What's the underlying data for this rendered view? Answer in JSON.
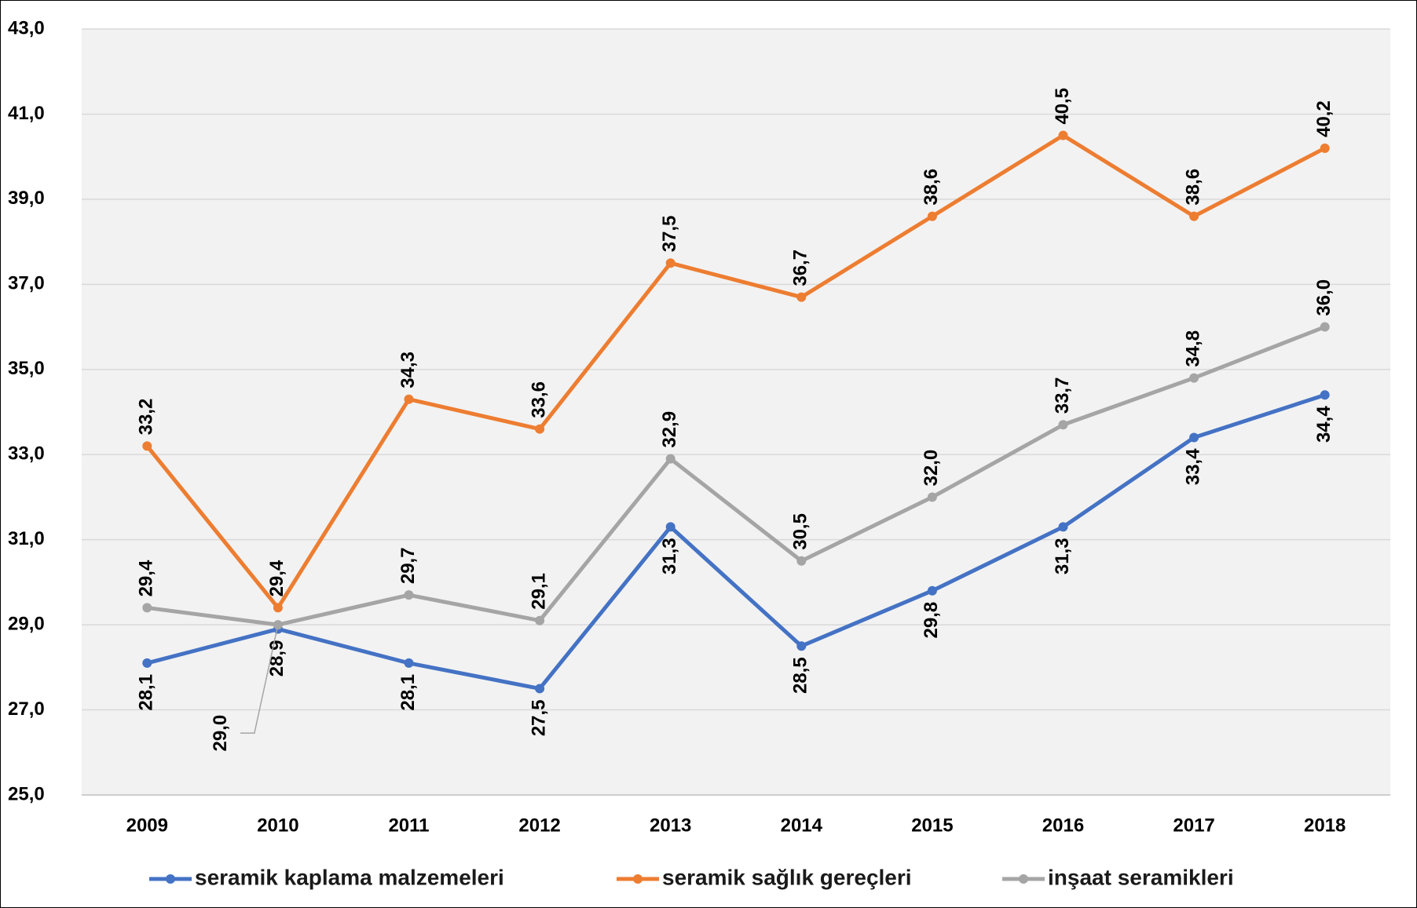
{
  "chart_data": {
    "type": "line",
    "categories": [
      "2009",
      "2010",
      "2011",
      "2012",
      "2013",
      "2014",
      "2015",
      "2016",
      "2017",
      "2018"
    ],
    "series": [
      {
        "name": "seramik kaplama malzemeleri",
        "color": "#4472c4",
        "values": [
          28.1,
          28.9,
          28.1,
          27.5,
          31.3,
          28.5,
          29.8,
          31.3,
          33.4,
          34.4
        ],
        "value_labels": [
          "28,1",
          "28,9",
          "28,1",
          "27,5",
          "31,3",
          "28,5",
          "29,8",
          "31,3",
          "33,4",
          "34,4"
        ]
      },
      {
        "name": "seramik sağlık gereçleri",
        "color": "#ed7d31",
        "values": [
          33.2,
          29.4,
          34.3,
          33.6,
          37.5,
          36.7,
          38.6,
          40.5,
          38.6,
          40.2
        ],
        "value_labels": [
          "33,2",
          "29,4",
          "34,3",
          "33,6",
          "37,5",
          "36,7",
          "38,6",
          "40,5",
          "38,6",
          "40,2"
        ]
      },
      {
        "name": "inşaat seramikleri",
        "color": "#a5a5a5",
        "values": [
          29.4,
          29.0,
          29.7,
          29.1,
          32.9,
          30.5,
          32.0,
          33.7,
          34.8,
          36.0
        ],
        "value_labels": [
          "29,4",
          "29,0",
          "29,7",
          "29,1",
          "32,9",
          "30,5",
          "32,0",
          "33,7",
          "34,8",
          "36,0"
        ]
      }
    ],
    "ylim": [
      25,
      43
    ],
    "yticks": [
      {
        "value": 25,
        "label": "25,0"
      },
      {
        "value": 27,
        "label": "27,0"
      },
      {
        "value": 29,
        "label": "29,0"
      },
      {
        "value": 31,
        "label": "31,0"
      },
      {
        "value": 33,
        "label": "33,0"
      },
      {
        "value": 35,
        "label": "35,0"
      },
      {
        "value": 37,
        "label": "37,0"
      },
      {
        "value": 39,
        "label": "39,0"
      },
      {
        "value": 41,
        "label": "41,0"
      },
      {
        "value": 43,
        "label": "43,0"
      }
    ],
    "grid": true,
    "legend": "bottom"
  }
}
